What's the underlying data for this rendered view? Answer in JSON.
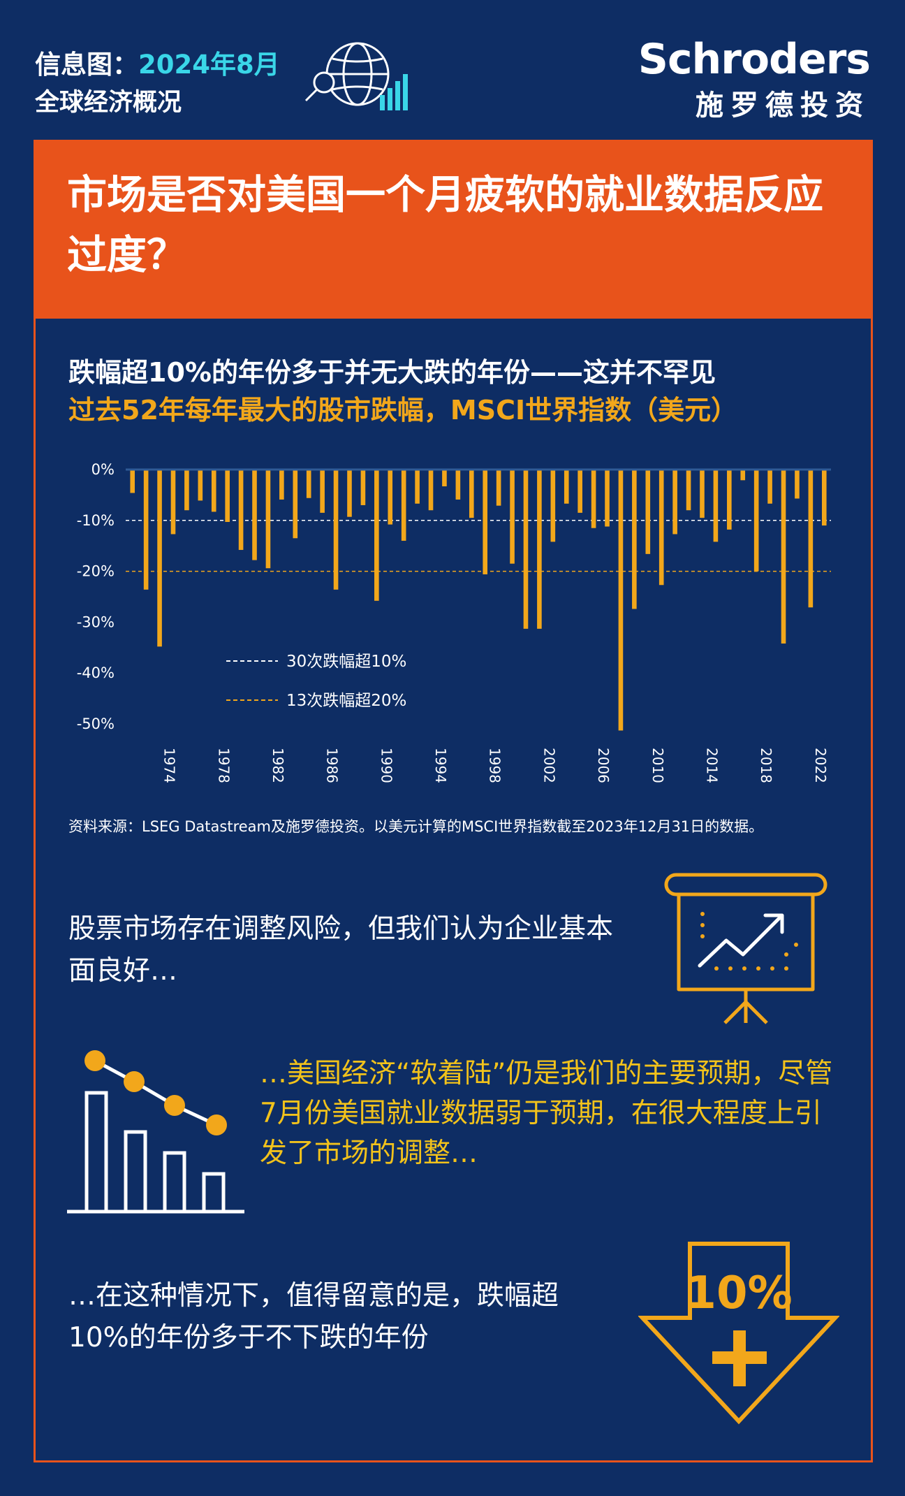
{
  "header": {
    "label_prefix": "信息图：",
    "date": "2024年8月",
    "subtitle": "全球经济概况",
    "brand_en": "Schroders",
    "brand_zh": "施罗德投资"
  },
  "title": "市场是否对美国一个月疲软的就业数据反应过度？",
  "chart_heading": "跌幅超10%的年份多于并无大跌的年份——这并不罕见",
  "chart_subheading": "过去52年每年最大的股市跌幅，MSCI世界指数（美元）",
  "source": "资料来源：LSEG Datastream及施罗德投资。以美元计算的MSCI世界指数截至2023年12月31日的数据。",
  "paragraph1": "股票市场存在调整风险，但我们认为企业基本面良好…",
  "paragraph2": "…美国经济“软着陆”仍是我们的主要预期，尽管7月份美国就业数据弱于预期，在很大程度上引发了市场的调整…",
  "paragraph3": "…在这种情况下，值得留意的是，跌幅超10%的年份多于不下跌的年份",
  "arrow_label": "10%",
  "colors": {
    "background": "#0e2d64",
    "accent_orange": "#e8531b",
    "bar_yellow": "#f2a71b",
    "header_cyan": "#3ad6e8"
  },
  "chart_data": {
    "type": "bar",
    "title": "过去52年每年最大的股市跌幅，MSCI世界指数（美元）",
    "ylim": [
      -50,
      0
    ],
    "y_ticks": [
      "0%",
      "-10%",
      "-20%",
      "-30%",
      "-40%",
      "-50%"
    ],
    "x_tick_labels": [
      "1974",
      "1978",
      "1982",
      "1986",
      "1990",
      "1994",
      "1998",
      "2002",
      "2006",
      "2010",
      "2014",
      "2018",
      "2022"
    ],
    "reference_lines": [
      {
        "value": -10,
        "label": "30次跌幅超10%",
        "color": "#ffffff"
      },
      {
        "value": -20,
        "label": "13次跌幅超20%",
        "color": "#f2a71b"
      }
    ],
    "categories": [
      "1972",
      "1973",
      "1974",
      "1975",
      "1976",
      "1977",
      "1978",
      "1979",
      "1980",
      "1981",
      "1982",
      "1983",
      "1984",
      "1985",
      "1986",
      "1987",
      "1988",
      "1989",
      "1990",
      "1991",
      "1992",
      "1993",
      "1994",
      "1995",
      "1996",
      "1997",
      "1998",
      "1999",
      "2000",
      "2001",
      "2002",
      "2003",
      "2004",
      "2005",
      "2006",
      "2007",
      "2008",
      "2009",
      "2010",
      "2011",
      "2012",
      "2013",
      "2014",
      "2015",
      "2016",
      "2017",
      "2018",
      "2019",
      "2020",
      "2021",
      "2022",
      "2023"
    ],
    "values": [
      -4.6,
      -23.6,
      -34.8,
      -12.7,
      -8.0,
      -6.1,
      -8.3,
      -10.3,
      -15.8,
      -17.8,
      -19.4,
      -5.9,
      -13.5,
      -5.6,
      -8.5,
      -23.6,
      -9.3,
      -7.0,
      -25.8,
      -10.8,
      -14.0,
      -6.7,
      -8.0,
      -3.3,
      -5.9,
      -9.5,
      -20.6,
      -7.1,
      -18.5,
      -31.3,
      -31.3,
      -14.2,
      -6.7,
      -8.5,
      -11.5,
      -11.2,
      -51.3,
      -27.4,
      -16.6,
      -22.7,
      -12.7,
      -8.0,
      -9.5,
      -14.2,
      -11.8,
      -2.1,
      -20.0,
      -6.7,
      -34.2,
      -5.7,
      -27.1,
      -11.0
    ]
  }
}
